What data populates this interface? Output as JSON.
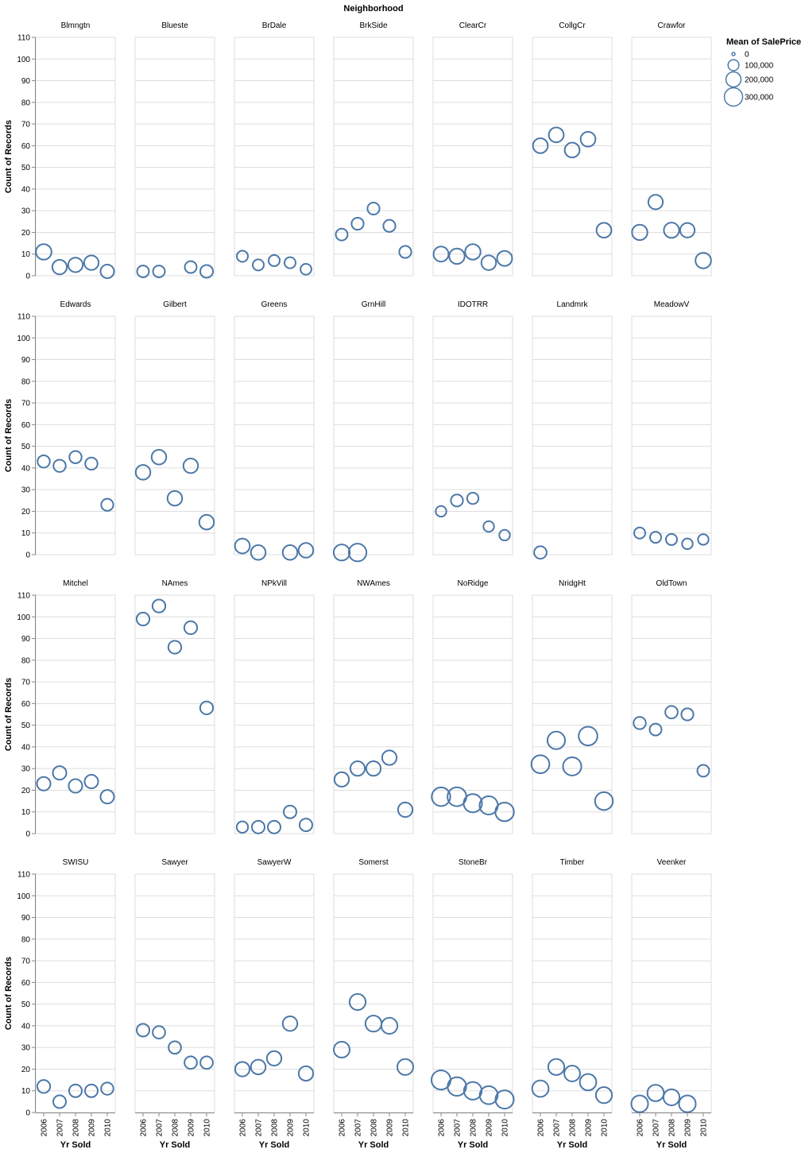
{
  "chart_data": {
    "type": "scatter",
    "facet_title": "Neighborhood",
    "xlabel": "Yr Sold",
    "ylabel": "Count of Records",
    "x_ticks": [
      "2006",
      "2007",
      "2008",
      "2009",
      "2010"
    ],
    "ylim": [
      0,
      110
    ],
    "y_ticks": [
      "0",
      "10",
      "20",
      "30",
      "40",
      "50",
      "60",
      "70",
      "80",
      "90",
      "100",
      "110"
    ],
    "size_field": "Mean of SalePrice",
    "size_domain": [
      0,
      350000
    ],
    "legend": {
      "title": "Mean of SalePrice",
      "position": "right",
      "entries": [
        {
          "label": "0",
          "value": 0
        },
        {
          "label": "100,000",
          "value": 100000
        },
        {
          "label": "200,000",
          "value": 200000
        },
        {
          "label": "300,000",
          "value": 300000
        }
      ]
    },
    "mark_color": "#4c78a8",
    "grid": true,
    "panels": [
      {
        "name": "Blmngtn",
        "points": [
          [
            2006,
            11,
            215000
          ],
          [
            2007,
            4,
            185000
          ],
          [
            2008,
            5,
            185000
          ],
          [
            2009,
            6,
            185000
          ],
          [
            2010,
            2,
            160000
          ]
        ]
      },
      {
        "name": "Blueste",
        "points": [
          [
            2006,
            2,
            120000
          ],
          [
            2007,
            2,
            120000
          ],
          [
            2009,
            4,
            120000
          ],
          [
            2010,
            2,
            140000
          ]
        ]
      },
      {
        "name": "BrDale",
        "points": [
          [
            2006,
            9,
            105000
          ],
          [
            2007,
            5,
            105000
          ],
          [
            2008,
            7,
            105000
          ],
          [
            2009,
            6,
            105000
          ],
          [
            2010,
            3,
            100000
          ]
        ]
      },
      {
        "name": "BrkSide",
        "points": [
          [
            2006,
            19,
            120000
          ],
          [
            2007,
            24,
            125000
          ],
          [
            2008,
            31,
            125000
          ],
          [
            2009,
            23,
            125000
          ],
          [
            2010,
            11,
            125000
          ]
        ]
      },
      {
        "name": "ClearCr",
        "points": [
          [
            2006,
            10,
            200000
          ],
          [
            2007,
            9,
            210000
          ],
          [
            2008,
            11,
            210000
          ],
          [
            2009,
            6,
            190000
          ],
          [
            2010,
            8,
            200000
          ]
        ]
      },
      {
        "name": "CollgCr",
        "points": [
          [
            2006,
            60,
            195000
          ],
          [
            2007,
            65,
            195000
          ],
          [
            2008,
            58,
            195000
          ],
          [
            2009,
            63,
            195000
          ],
          [
            2010,
            21,
            195000
          ]
        ]
      },
      {
        "name": "Crawfor",
        "points": [
          [
            2006,
            20,
            210000
          ],
          [
            2007,
            34,
            185000
          ],
          [
            2008,
            21,
            205000
          ],
          [
            2009,
            21,
            185000
          ],
          [
            2010,
            7,
            215000
          ]
        ]
      },
      {
        "name": "Edwards",
        "points": [
          [
            2006,
            43,
            130000
          ],
          [
            2007,
            41,
            130000
          ],
          [
            2008,
            45,
            130000
          ],
          [
            2009,
            42,
            130000
          ],
          [
            2010,
            23,
            125000
          ]
        ]
      },
      {
        "name": "Gilbert",
        "points": [
          [
            2006,
            38,
            190000
          ],
          [
            2007,
            45,
            190000
          ],
          [
            2008,
            26,
            190000
          ],
          [
            2009,
            41,
            190000
          ],
          [
            2010,
            15,
            190000
          ]
        ]
      },
      {
        "name": "Greens",
        "points": [
          [
            2006,
            4,
            195000
          ],
          [
            2007,
            1,
            190000
          ],
          [
            2009,
            1,
            190000
          ],
          [
            2010,
            2,
            190000
          ]
        ]
      },
      {
        "name": "GrnHill",
        "points": [
          [
            2006,
            1,
            230000
          ],
          [
            2007,
            1,
            280000
          ]
        ]
      },
      {
        "name": "IDOTRR",
        "points": [
          [
            2006,
            20,
            95000
          ],
          [
            2007,
            25,
            125000
          ],
          [
            2008,
            26,
            110000
          ],
          [
            2009,
            13,
            95000
          ],
          [
            2010,
            9,
            95000
          ]
        ]
      },
      {
        "name": "Landmrk",
        "points": [
          [
            2006,
            1,
            135000
          ]
        ]
      },
      {
        "name": "MeadowV",
        "points": [
          [
            2006,
            10,
            105000
          ],
          [
            2007,
            8,
            105000
          ],
          [
            2008,
            7,
            105000
          ],
          [
            2009,
            5,
            95000
          ],
          [
            2010,
            7,
            95000
          ]
        ]
      },
      {
        "name": "Mitchel",
        "points": [
          [
            2006,
            23,
            160000
          ],
          [
            2007,
            28,
            160000
          ],
          [
            2008,
            22,
            160000
          ],
          [
            2009,
            24,
            160000
          ],
          [
            2010,
            17,
            160000
          ]
        ]
      },
      {
        "name": "NAmes",
        "points": [
          [
            2006,
            99,
            145000
          ],
          [
            2007,
            105,
            145000
          ],
          [
            2008,
            86,
            145000
          ],
          [
            2009,
            95,
            145000
          ],
          [
            2010,
            58,
            145000
          ]
        ]
      },
      {
        "name": "NPkVill",
        "points": [
          [
            2006,
            3,
            110000
          ],
          [
            2007,
            3,
            140000
          ],
          [
            2008,
            3,
            140000
          ],
          [
            2009,
            10,
            140000
          ],
          [
            2010,
            4,
            140000
          ]
        ]
      },
      {
        "name": "NWAmes",
        "points": [
          [
            2006,
            25,
            185000
          ],
          [
            2007,
            30,
            185000
          ],
          [
            2008,
            30,
            185000
          ],
          [
            2009,
            35,
            185000
          ],
          [
            2010,
            11,
            185000
          ]
        ]
      },
      {
        "name": "NoRidge",
        "points": [
          [
            2006,
            17,
            310000
          ],
          [
            2007,
            17,
            320000
          ],
          [
            2008,
            14,
            300000
          ],
          [
            2009,
            13,
            300000
          ],
          [
            2010,
            10,
            310000
          ]
        ]
      },
      {
        "name": "NridgHt",
        "points": [
          [
            2006,
            32,
            290000
          ],
          [
            2007,
            43,
            275000
          ],
          [
            2008,
            31,
            300000
          ],
          [
            2009,
            45,
            315000
          ],
          [
            2010,
            15,
            285000
          ]
        ]
      },
      {
        "name": "OldTown",
        "points": [
          [
            2006,
            51,
            130000
          ],
          [
            2007,
            48,
            120000
          ],
          [
            2008,
            56,
            135000
          ],
          [
            2009,
            55,
            125000
          ],
          [
            2010,
            29,
            120000
          ]
        ]
      },
      {
        "name": "SWISU",
        "points": [
          [
            2006,
            12,
            145000
          ],
          [
            2007,
            5,
            140000
          ],
          [
            2008,
            10,
            140000
          ],
          [
            2009,
            10,
            140000
          ],
          [
            2010,
            11,
            130000
          ]
        ]
      },
      {
        "name": "Sawyer",
        "points": [
          [
            2006,
            38,
            140000
          ],
          [
            2007,
            37,
            135000
          ],
          [
            2008,
            30,
            135000
          ],
          [
            2009,
            23,
            135000
          ],
          [
            2010,
            23,
            135000
          ]
        ]
      },
      {
        "name": "SawyerW",
        "points": [
          [
            2006,
            20,
            185000
          ],
          [
            2007,
            21,
            190000
          ],
          [
            2008,
            25,
            185000
          ],
          [
            2009,
            41,
            190000
          ],
          [
            2010,
            18,
            185000
          ]
        ]
      },
      {
        "name": "Somerst",
        "points": [
          [
            2006,
            29,
            225000
          ],
          [
            2007,
            51,
            230000
          ],
          [
            2008,
            41,
            230000
          ],
          [
            2009,
            40,
            230000
          ],
          [
            2010,
            21,
            225000
          ]
        ]
      },
      {
        "name": "StoneBr",
        "points": [
          [
            2006,
            15,
            330000
          ],
          [
            2007,
            12,
            310000
          ],
          [
            2008,
            10,
            280000
          ],
          [
            2009,
            8,
            290000
          ],
          [
            2010,
            6,
            300000
          ]
        ]
      },
      {
        "name": "Timber",
        "points": [
          [
            2006,
            11,
            240000
          ],
          [
            2007,
            21,
            230000
          ],
          [
            2008,
            18,
            220000
          ],
          [
            2009,
            14,
            240000
          ],
          [
            2010,
            8,
            230000
          ]
        ]
      },
      {
        "name": "Veenker",
        "points": [
          [
            2006,
            4,
            250000
          ],
          [
            2007,
            9,
            240000
          ],
          [
            2008,
            7,
            230000
          ],
          [
            2009,
            4,
            250000
          ]
        ]
      }
    ]
  }
}
